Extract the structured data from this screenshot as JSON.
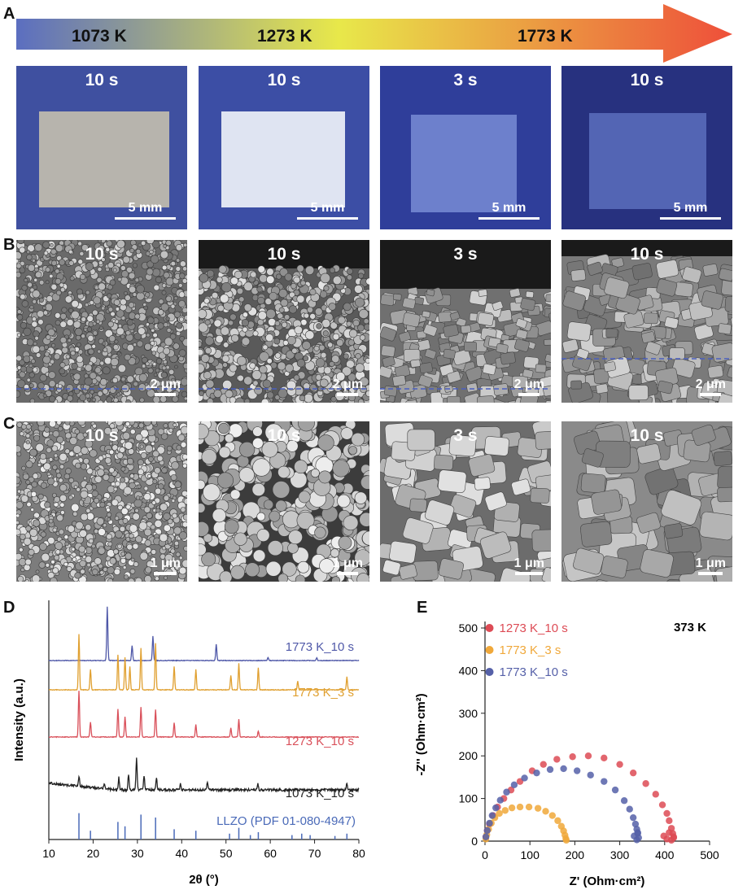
{
  "panels": {
    "A": "A",
    "B": "B",
    "C": "C",
    "D": "D",
    "E": "E"
  },
  "arrow": {
    "temperatures": [
      "1073 K",
      "1273 K",
      "1773 K"
    ],
    "colors": [
      "#5b6ec0",
      "#e8e84a",
      "#ee4f3a"
    ]
  },
  "photos": [
    {
      "time": "10 s",
      "scale": "5 mm",
      "bg": "#3f50a0",
      "sample": "#b7b4ad"
    },
    {
      "time": "10 s",
      "scale": "5 mm",
      "bg": "#3c4ea5",
      "sample": "#dfe4f2"
    },
    {
      "time": "3 s",
      "scale": "5 mm",
      "bg": "#2f3e9a",
      "sample": "#6d80cc"
    },
    {
      "time": "10 s",
      "scale": "5 mm",
      "bg": "#27317f",
      "sample": "#5365b4"
    }
  ],
  "sem_cross": [
    {
      "time": "10 s",
      "scale": "2 μm"
    },
    {
      "time": "10 s",
      "scale": "2 μm"
    },
    {
      "time": "3 s",
      "scale": "2 μm"
    },
    {
      "time": "10 s",
      "scale": "2 μm"
    }
  ],
  "sem_surface": [
    {
      "time": "10 s",
      "scale": "1 μm"
    },
    {
      "time": "10 s",
      "scale": "1 μm"
    },
    {
      "time": "3 s",
      "scale": "1 μm"
    },
    {
      "time": "10 s",
      "scale": "1 μm"
    }
  ],
  "chart_data": [
    {
      "type": "line",
      "panel": "D",
      "xlabel": "2θ (°)",
      "ylabel": "Intensity (a.u.)",
      "xlim": [
        10,
        80
      ],
      "xticks": [
        10,
        20,
        30,
        40,
        50,
        60,
        70,
        80
      ],
      "series": [
        {
          "name": "1773 K_10 s",
          "color": "#4f58a8",
          "peaks": [
            [
              23.2,
              1.0
            ],
            [
              28.8,
              0.28
            ],
            [
              33.5,
              0.45
            ],
            [
              47.8,
              0.3
            ],
            [
              59.5,
              0.06
            ],
            [
              70.5,
              0.05
            ]
          ]
        },
        {
          "name": "1773 K_3 s",
          "color": "#e0a030",
          "peaks": [
            [
              16.8,
              0.95
            ],
            [
              19.4,
              0.35
            ],
            [
              25.6,
              0.6
            ],
            [
              27.2,
              0.55
            ],
            [
              28.3,
              0.4
            ],
            [
              30.8,
              0.72
            ],
            [
              34.1,
              0.8
            ],
            [
              38.3,
              0.4
            ],
            [
              43.2,
              0.35
            ],
            [
              51.1,
              0.25
            ],
            [
              52.9,
              0.45
            ],
            [
              57.3,
              0.38
            ],
            [
              66.2,
              0.15
            ],
            [
              77.3,
              0.22
            ]
          ]
        },
        {
          "name": "1273 K_10 s",
          "color": "#d9505a",
          "peaks": [
            [
              16.8,
              0.92
            ],
            [
              19.4,
              0.3
            ],
            [
              25.6,
              0.55
            ],
            [
              27.2,
              0.4
            ],
            [
              30.8,
              0.6
            ],
            [
              34.1,
              0.55
            ],
            [
              38.3,
              0.28
            ],
            [
              43.2,
              0.25
            ],
            [
              51.1,
              0.18
            ],
            [
              52.9,
              0.35
            ],
            [
              57.3,
              0.12
            ]
          ]
        },
        {
          "name": "1073 K_10 s",
          "color": "#222222",
          "peaks": [
            [
              16.8,
              0.2
            ],
            [
              22.5,
              0.1
            ],
            [
              25.8,
              0.25
            ],
            [
              28.0,
              0.32
            ],
            [
              29.8,
              0.65
            ],
            [
              31.5,
              0.3
            ],
            [
              34.3,
              0.25
            ],
            [
              39.7,
              0.12
            ],
            [
              45.8,
              0.15
            ],
            [
              57.2,
              0.12
            ],
            [
              77.3,
              0.15
            ]
          ]
        }
      ],
      "reference": {
        "name": "LLZO (PDF 01-080-4947)",
        "color": "#4a6ab8",
        "lines": [
          [
            16.8,
            0.9
          ],
          [
            19.4,
            0.3
          ],
          [
            25.6,
            0.6
          ],
          [
            27.2,
            0.45
          ],
          [
            30.8,
            0.85
          ],
          [
            34.1,
            0.75
          ],
          [
            38.3,
            0.35
          ],
          [
            43.2,
            0.3
          ],
          [
            50.8,
            0.2
          ],
          [
            52.9,
            0.4
          ],
          [
            55.5,
            0.15
          ],
          [
            57.3,
            0.25
          ],
          [
            64.9,
            0.15
          ],
          [
            67.1,
            0.2
          ],
          [
            69.0,
            0.15
          ],
          [
            74.6,
            0.12
          ],
          [
            77.3,
            0.2
          ]
        ]
      }
    },
    {
      "type": "scatter",
      "panel": "E",
      "xlabel": "Z' (Ohm·cm²)",
      "ylabel": "-Z'' (Ohm·cm²)",
      "xlim": [
        0,
        500
      ],
      "ylim": [
        0,
        500
      ],
      "xticks": [
        0,
        100,
        200,
        300,
        400,
        500
      ],
      "yticks": [
        0,
        100,
        200,
        300,
        400,
        500
      ],
      "annotation": "373 K",
      "series": [
        {
          "name": "1273 K_10 s",
          "color": "#dd4b55",
          "x": [
            2,
            5,
            10,
            18,
            28,
            42,
            58,
            78,
            105,
            130,
            160,
            195,
            230,
            265,
            300,
            330,
            358,
            380,
            395,
            405,
            410,
            415,
            418,
            420,
            415,
            405,
            398,
            410,
            420
          ],
          "y": [
            10,
            25,
            40,
            60,
            80,
            100,
            120,
            140,
            165,
            180,
            192,
            198,
            200,
            195,
            180,
            160,
            135,
            110,
            85,
            65,
            48,
            30,
            18,
            8,
            2,
            5,
            12,
            20,
            10
          ]
        },
        {
          "name": "1773 K_3 s",
          "color": "#f0a83a",
          "x": [
            2,
            4,
            8,
            14,
            22,
            32,
            45,
            60,
            78,
            98,
            118,
            135,
            150,
            162,
            170,
            175,
            178,
            180,
            181
          ],
          "y": [
            5,
            15,
            28,
            42,
            55,
            65,
            72,
            78,
            80,
            80,
            77,
            70,
            60,
            48,
            35,
            24,
            14,
            6,
            2
          ]
        },
        {
          "name": "1773 K_10 s",
          "color": "#5560a8",
          "x": [
            2,
            5,
            10,
            16,
            24,
            34,
            48,
            65,
            88,
            115,
            145,
            175,
            205,
            235,
            265,
            290,
            310,
            322,
            330,
            335,
            338,
            340,
            342,
            338,
            332,
            340
          ],
          "y": [
            10,
            25,
            42,
            60,
            78,
            96,
            115,
            132,
            148,
            160,
            168,
            170,
            165,
            155,
            140,
            120,
            95,
            75,
            55,
            40,
            28,
            18,
            8,
            3,
            12,
            20
          ]
        }
      ]
    }
  ]
}
